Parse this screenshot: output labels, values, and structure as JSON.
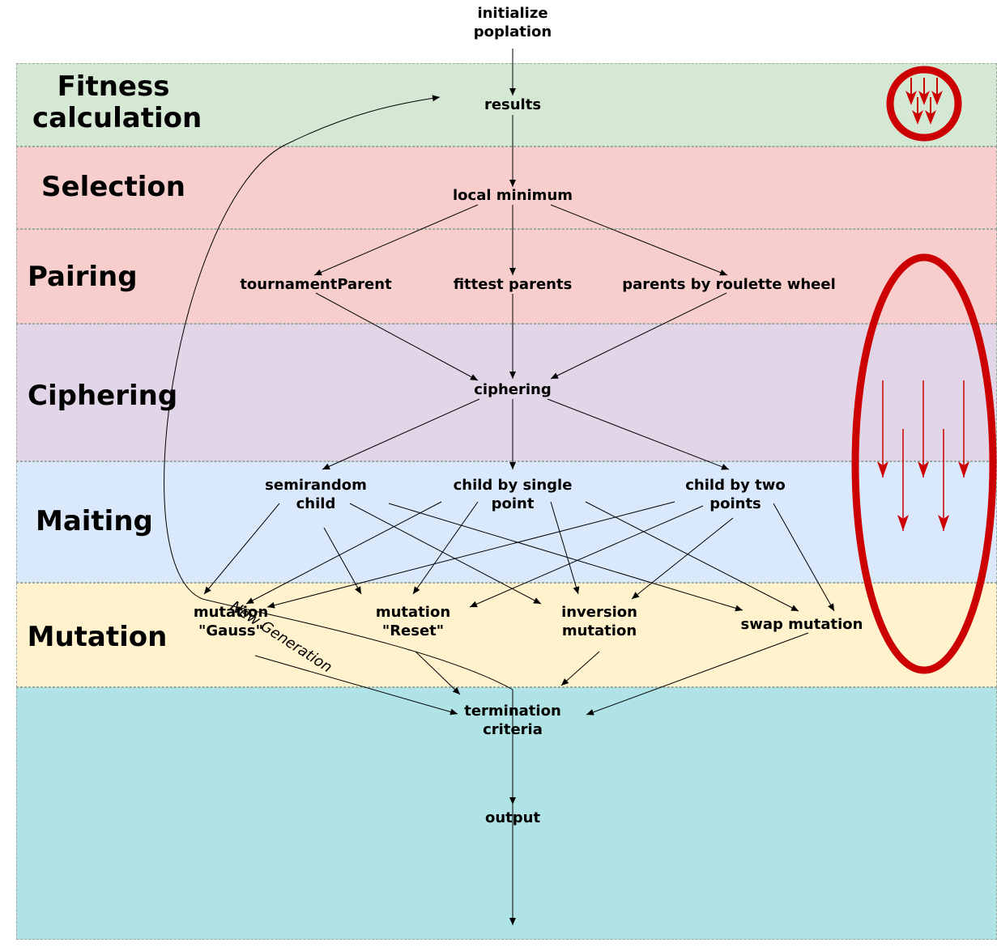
{
  "diagram": {
    "start_label_1": "initialize",
    "start_label_2": "poplation",
    "bands": {
      "fitness": {
        "title_1": "Fitness",
        "title_2": "calculation",
        "color": "#d5e8d4"
      },
      "selection": {
        "title": "Selection",
        "color": "#f8cecc"
      },
      "pairing": {
        "title": "Pairing",
        "color": "#f8cecc"
      },
      "ciphering": {
        "title": "Ciphering",
        "color": "#e1d5e7"
      },
      "maiting": {
        "title": "Maiting",
        "color": "#dae8fc"
      },
      "mutation": {
        "title": "Mutation",
        "color": "#fff2cc"
      },
      "output": {
        "color": "#b0e3e6"
      }
    },
    "nodes": {
      "results": "results",
      "local_minimum": "local minimum",
      "tournament_parent": "tournamentParent",
      "fittest_parents": "fittest parents",
      "roulette_parents": "parents by roulette wheel",
      "ciphering": "ciphering",
      "semirandom_1": "semirandom",
      "semirandom_2": "child",
      "single_point_1": "child by single",
      "single_point_2": "point",
      "two_points_1": "child by two",
      "two_points_2": "points",
      "gauss_1": "mutation",
      "gauss_2": "\"Gauss\"",
      "reset_1": "mutation",
      "reset_2": "\"Reset\"",
      "inversion_1": "inversion",
      "inversion_2": "mutation",
      "swap": "swap mutation",
      "termination_1": "termination",
      "termination_2": "criteria",
      "output": "output"
    },
    "loop_label": "New Generation",
    "accent_color": "#cc0000"
  }
}
